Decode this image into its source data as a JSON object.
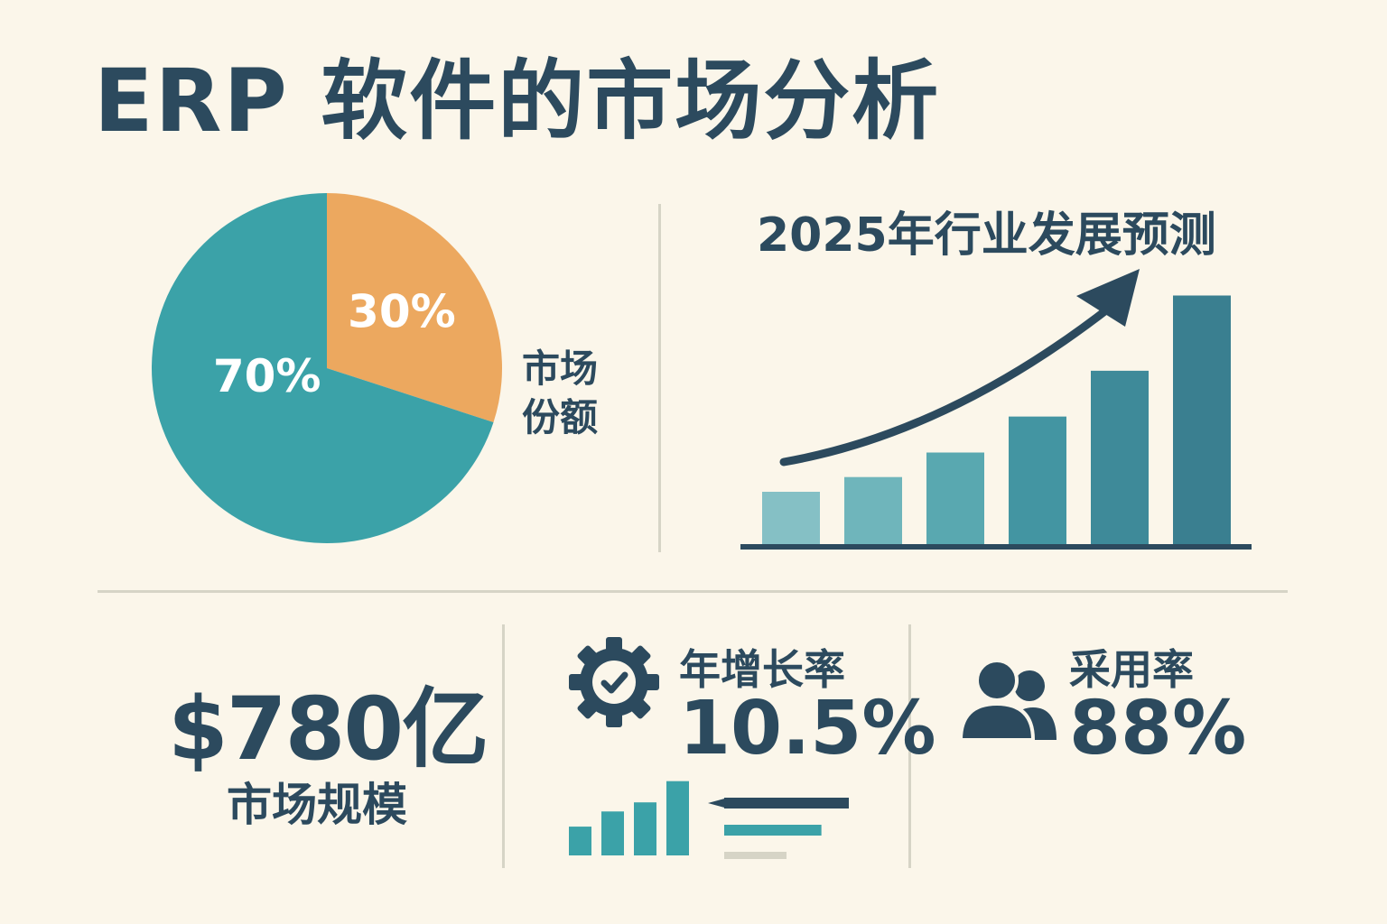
{
  "title": "ERP 软件的市场分析",
  "colors": {
    "background": "#fbf6ea",
    "text": "#2c4a5e",
    "teal": "#3ba2a8",
    "orange": "#eca85f",
    "divider": "#d6d4c6"
  },
  "chart_data": [
    {
      "type": "pie",
      "title": "",
      "legend_label": "市场份额",
      "slices": [
        {
          "label": "30%",
          "value": 30,
          "color": "#eca85f"
        },
        {
          "label": "70%",
          "value": 70,
          "color": "#3ba2a8"
        }
      ]
    },
    {
      "type": "bar",
      "title": "2025年行业发展预测",
      "xlabel": "",
      "ylabel": "",
      "trend_arrow": "up",
      "values": [
        3.2,
        4.1,
        5.6,
        7.8,
        10.6,
        15.2
      ],
      "colors": [
        "#85c0c5",
        "#6fb5bb",
        "#59a8b0",
        "#4395a2",
        "#3e8a99",
        "#3a7f90"
      ],
      "ylim": [
        0,
        16
      ]
    }
  ],
  "stats": {
    "market_size": {
      "value": "$780亿",
      "label": "市场规模"
    },
    "growth_rate": {
      "label": "年增长率",
      "value": "10.5%",
      "icon": "gear-check-icon"
    },
    "adoption_rate": {
      "label": "采用率",
      "value": "88%",
      "icon": "users-icon"
    }
  },
  "mini_bars": {
    "values": [
      0.38,
      0.58,
      0.7,
      0.98
    ],
    "color": "#3ba2a8"
  },
  "mini_lines": {
    "lengths": [
      1.0,
      0.78,
      0.5
    ],
    "colors": [
      "#2c4a5e",
      "#3ba2a8",
      "#d6d4c6"
    ]
  }
}
